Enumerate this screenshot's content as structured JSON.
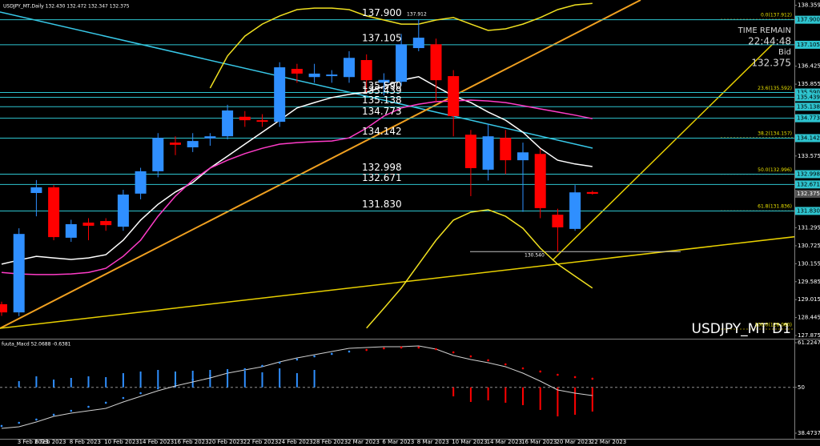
{
  "chart_data": [
    {
      "type": "candlestick",
      "title": "USDJPY_MT,Daily  132.430 132.472 132.347 132.375",
      "watermark": "USDJPY_MT D1",
      "categories": [
        null,
        "3 Feb 2023",
        "6 Feb 2023",
        null,
        "8 Feb 2023",
        null,
        "10 Feb 2023",
        null,
        "14 Feb 2023",
        null,
        "16 Feb 2023",
        null,
        "20 Feb 2023",
        null,
        "22 Feb 2023",
        null,
        "24 Feb 2023",
        null,
        "28 Feb 2023",
        null,
        "2 Mar 2023",
        null,
        "6 Mar 2023",
        null,
        "8 Mar 2023",
        null,
        "10 Mar 2023",
        null,
        "14 Mar 2023",
        null,
        "16 Mar 2023",
        null,
        "20 Mar 2023",
        null,
        "22 Mar 2023"
      ],
      "open": [
        128.87,
        128.61,
        132.4,
        132.58,
        130.98,
        131.46,
        131.51,
        131.33,
        132.38,
        133.09,
        134.0,
        133.85,
        134.13,
        134.2,
        134.82,
        134.71,
        134.66,
        136.34,
        136.08,
        136.11,
        136.08,
        136.62,
        135.9,
        135.93,
        137.0,
        137.12,
        136.11,
        134.25,
        133.14,
        134.15,
        133.44,
        133.64,
        131.71,
        131.26,
        132.43
      ],
      "high": [
        128.95,
        131.28,
        132.81,
        132.65,
        131.55,
        131.6,
        131.6,
        132.5,
        133.2,
        134.3,
        134.2,
        134.3,
        134.3,
        135.2,
        135.0,
        134.9,
        136.55,
        136.5,
        136.5,
        136.3,
        136.9,
        136.8,
        136.2,
        137.45,
        137.91,
        137.3,
        136.3,
        134.4,
        134.6,
        134.4,
        134.0,
        133.8,
        131.9,
        132.65,
        132.472
      ],
      "low": [
        128.5,
        128.49,
        131.66,
        130.9,
        130.85,
        130.9,
        131.2,
        131.2,
        132.2,
        132.9,
        133.6,
        133.7,
        133.9,
        134.1,
        134.5,
        134.5,
        134.5,
        135.9,
        135.9,
        135.9,
        135.9,
        135.6,
        135.5,
        135.8,
        136.9,
        135.3,
        134.2,
        132.3,
        132.8,
        133.0,
        131.8,
        131.6,
        130.54,
        131.2,
        132.347
      ],
      "close": [
        128.61,
        131.1,
        132.58,
        131.0,
        131.41,
        131.36,
        131.38,
        132.35,
        133.09,
        134.15,
        133.93,
        134.05,
        134.2,
        135.02,
        134.71,
        134.66,
        136.39,
        136.19,
        136.19,
        136.16,
        136.69,
        135.98,
        135.99,
        137.12,
        137.33,
        135.98,
        134.84,
        133.19,
        134.2,
        133.44,
        133.69,
        131.92,
        131.31,
        132.42,
        132.375
      ],
      "up_color": "#2f8fff",
      "down_color": "#ff0000",
      "ylim": [
        127.8,
        138.45
      ],
      "yticks": [
        127.875,
        128.445,
        129.015,
        129.585,
        130.155,
        130.725,
        131.295,
        133.575,
        135.855,
        136.425,
        138.359
      ],
      "overlays": [
        {
          "color": "#ffffff",
          "values": [
            130.14,
            130.27,
            130.39,
            130.34,
            130.29,
            130.34,
            130.44,
            130.9,
            131.54,
            132.04,
            132.43,
            132.73,
            133.19,
            133.57,
            133.95,
            134.33,
            134.71,
            135.1,
            135.27,
            135.43,
            135.53,
            135.6,
            135.78,
            135.98,
            136.09,
            135.78,
            135.48,
            135.27,
            134.97,
            134.71,
            134.33,
            133.82,
            133.44,
            133.32,
            133.24
          ]
        },
        {
          "color": "#ff3cc8",
          "values": [
            129.88,
            129.83,
            129.81,
            129.81,
            129.83,
            129.88,
            130.01,
            130.39,
            130.9,
            131.66,
            132.3,
            132.81,
            133.19,
            133.44,
            133.65,
            133.82,
            133.95,
            134.0,
            134.03,
            134.05,
            134.15,
            134.46,
            134.84,
            135.1,
            135.22,
            135.3,
            135.32,
            135.35,
            135.32,
            135.27,
            135.17,
            135.07,
            134.97,
            134.87,
            134.76
          ]
        },
        {
          "color": "#f0e020",
          "values": [
            null,
            null,
            null,
            null,
            null,
            null,
            null,
            null,
            null,
            null,
            null,
            null,
            135.73,
            136.75,
            137.38,
            137.76,
            138.02,
            138.22,
            138.27,
            138.27,
            138.22,
            138.02,
            137.89,
            137.76,
            137.76,
            137.89,
            137.97,
            137.76,
            137.56,
            137.61,
            137.76,
            137.97,
            138.22,
            138.37,
            138.42
          ]
        },
        {
          "color": "#f0e020",
          "values": [
            null,
            null,
            null,
            null,
            null,
            null,
            null,
            null,
            null,
            null,
            null,
            null,
            null,
            null,
            null,
            null,
            null,
            null,
            null,
            null,
            null,
            128.11,
            128.74,
            129.38,
            130.14,
            130.9,
            131.54,
            131.79,
            131.87,
            131.66,
            131.28,
            130.65,
            130.14,
            129.76,
            129.38
          ]
        }
      ],
      "levels": [
        {
          "value": 137.9,
          "label": "137.900"
        },
        137.105,
        {
          "value": 135.59,
          "label": "135.590"
        },
        135.439,
        135.138,
        134.773,
        134.142,
        132.998,
        132.671,
        {
          "value": 131.83,
          "label": "131.830"
        }
      ],
      "level_color": "#2ec4cf",
      "fibonacci": [
        {
          "value": 137.912,
          "label": "0.0(137.912)"
        },
        {
          "value": 135.592,
          "label": "23.6(135.592)"
        },
        {
          "value": 134.157,
          "label": "38.2(134.157)"
        },
        {
          "value": 132.996,
          "label": "50.0(132.996)"
        },
        {
          "value": 131.836,
          "label": "61.8(131.836)"
        },
        {
          "value": 128.08,
          "label": "100.0(128.080)"
        }
      ],
      "high_label": 137.912,
      "support": {
        "value": 130.54,
        "label": "130.540"
      },
      "timer": {
        "label": "TIME REMAIN",
        "remaining": "22:44:48",
        "bid_label": "Bid",
        "bid": 132.375
      }
    },
    {
      "type": "macd",
      "title": "fuuta_Macd 52.0688 -0.6381",
      "ylim": [
        38.4737,
        61.2247
      ],
      "yticks": [
        38.4737,
        50,
        61.2247
      ],
      "line": {
        "color": "#d0d0d0",
        "values": [
          39.68,
          40.08,
          41.29,
          42.7,
          43.51,
          44.11,
          44.72,
          46.33,
          47.74,
          49.15,
          50.35,
          51.36,
          52.37,
          53.57,
          54.38,
          55.19,
          56.39,
          57.4,
          58.21,
          59.01,
          59.81,
          60.02,
          60.22,
          60.22,
          60.42,
          59.61,
          58.0,
          57.0,
          56.19,
          55.19,
          53.57,
          51.56,
          49.35,
          48.54,
          47.94
        ]
      },
      "dots": [
        {
          "color": "#2f8fff",
          "values": [
            40.29,
            41.09,
            41.9,
            43.11,
            44.11,
            45.12,
            46.13,
            47.33,
            48.54,
            49.75,
            50.96,
            51.96,
            52.97,
            53.78,
            54.58,
            55.39,
            56.19,
            57.0,
            57.8,
            58.41,
            59.01,
            null,
            null,
            null,
            null,
            null,
            null,
            null,
            null,
            null,
            null,
            null,
            null,
            null,
            null
          ]
        },
        {
          "color": "#ff0000",
          "values": [
            null,
            null,
            null,
            null,
            null,
            null,
            null,
            null,
            null,
            null,
            null,
            null,
            null,
            null,
            null,
            null,
            null,
            null,
            null,
            null,
            null,
            59.41,
            59.81,
            60.02,
            60.02,
            59.61,
            58.81,
            57.8,
            56.8,
            55.79,
            54.78,
            53.98,
            53.17,
            52.57,
            52.17
          ]
        }
      ],
      "histogram": {
        "up_color": "#2f8fff",
        "down_color": "#ff0000",
        "values": [
          null,
          51.56,
          52.77,
          51.96,
          52.37,
          52.77,
          52.57,
          53.57,
          53.98,
          54.38,
          53.98,
          54.18,
          54.38,
          54.58,
          54.18,
          53.78,
          54.78,
          53.57,
          54.38,
          null,
          null,
          null,
          null,
          null,
          null,
          null,
          47.74,
          46.33,
          46.73,
          46.13,
          45.52,
          44.32,
          42.7,
          43.11,
          43.91
        ]
      }
    }
  ]
}
